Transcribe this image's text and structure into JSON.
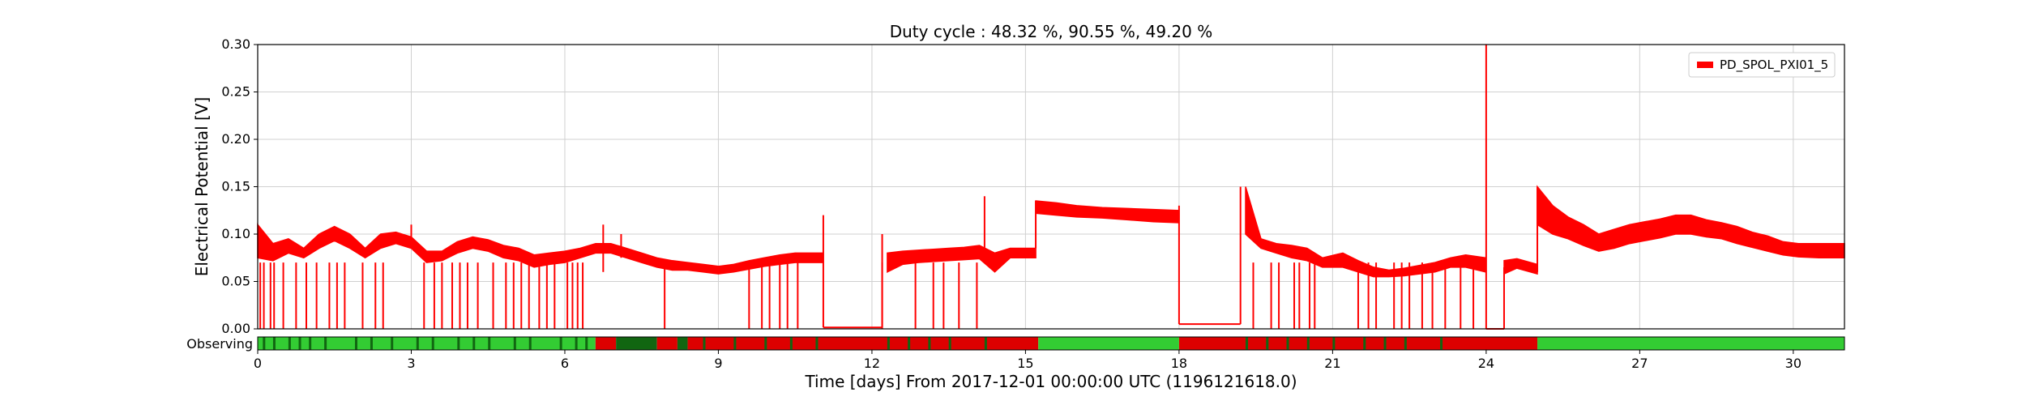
{
  "chart_data": {
    "type": "line",
    "title": "Duty cycle : 48.32 %, 90.55 %, 49.20 %",
    "xlabel": "Time [days] From 2017-12-01 00:00:00 UTC (1196121618.0)",
    "ylabel": "Electrical Potential [V]",
    "xlim": [
      0,
      31
    ],
    "ylim": [
      0,
      0.3
    ],
    "xticks": [
      0,
      3,
      6,
      9,
      12,
      15,
      18,
      21,
      24,
      27,
      30
    ],
    "xtick_labels": [
      "0",
      "3",
      "6",
      "9",
      "12",
      "15",
      "18",
      "21",
      "24",
      "27",
      "30"
    ],
    "yticks": [
      0,
      0.05,
      0.1,
      0.15,
      0.2,
      0.25,
      0.3
    ],
    "ytick_labels": [
      "0.00",
      "0.05",
      "0.10",
      "0.15",
      "0.20",
      "0.25",
      "0.30"
    ],
    "grid": true,
    "legend_position": "top-right",
    "series": [
      {
        "name": "PD_SPOL_PXI01_5",
        "color": "#ff0000",
        "band": [
          [
            0.0,
            0.075,
            0.11
          ],
          [
            0.3,
            0.072,
            0.09
          ],
          [
            0.6,
            0.08,
            0.095
          ],
          [
            0.9,
            0.075,
            0.085
          ],
          [
            1.2,
            0.085,
            0.1
          ],
          [
            1.5,
            0.093,
            0.108
          ],
          [
            1.8,
            0.085,
            0.1
          ],
          [
            2.1,
            0.075,
            0.085
          ],
          [
            2.4,
            0.085,
            0.1
          ],
          [
            2.7,
            0.09,
            0.102
          ],
          [
            3.0,
            0.085,
            0.097
          ],
          [
            3.3,
            0.07,
            0.082
          ],
          [
            3.6,
            0.072,
            0.082
          ],
          [
            3.9,
            0.08,
            0.092
          ],
          [
            4.2,
            0.085,
            0.097
          ],
          [
            4.5,
            0.082,
            0.094
          ],
          [
            4.8,
            0.075,
            0.088
          ],
          [
            5.1,
            0.072,
            0.085
          ],
          [
            5.4,
            0.065,
            0.078
          ],
          [
            5.7,
            0.068,
            0.08
          ],
          [
            6.0,
            0.07,
            0.082
          ],
          [
            6.3,
            0.075,
            0.085
          ],
          [
            6.6,
            0.08,
            0.09
          ],
          [
            6.9,
            0.08,
            0.09
          ],
          [
            7.2,
            0.075,
            0.085
          ],
          [
            7.5,
            0.07,
            0.08
          ],
          [
            7.8,
            0.065,
            0.075
          ],
          [
            8.1,
            0.062,
            0.072
          ],
          [
            8.4,
            0.062,
            0.07
          ],
          [
            8.7,
            0.06,
            0.068
          ],
          [
            9.0,
            0.058,
            0.066
          ],
          [
            9.3,
            0.06,
            0.068
          ],
          [
            9.6,
            0.063,
            0.072
          ],
          [
            9.9,
            0.066,
            0.075
          ],
          [
            10.2,
            0.068,
            0.078
          ],
          [
            10.5,
            0.07,
            0.08
          ],
          [
            10.8,
            0.07,
            0.08
          ],
          [
            11.05,
            0.07,
            0.08
          ]
        ],
        "band2": [
          [
            12.3,
            0.06,
            0.08
          ],
          [
            12.6,
            0.068,
            0.082
          ],
          [
            12.9,
            0.07,
            0.083
          ],
          [
            13.2,
            0.071,
            0.084
          ],
          [
            13.5,
            0.072,
            0.085
          ],
          [
            13.8,
            0.073,
            0.086
          ],
          [
            14.1,
            0.074,
            0.088
          ],
          [
            14.4,
            0.06,
            0.08
          ],
          [
            14.7,
            0.075,
            0.085
          ],
          [
            15.2,
            0.075,
            0.085
          ]
        ],
        "band3": [
          [
            15.2,
            0.122,
            0.135
          ],
          [
            15.6,
            0.12,
            0.133
          ],
          [
            16.0,
            0.118,
            0.13
          ],
          [
            16.5,
            0.117,
            0.128
          ],
          [
            17.0,
            0.115,
            0.127
          ],
          [
            17.5,
            0.113,
            0.126
          ],
          [
            18.0,
            0.112,
            0.125
          ]
        ],
        "band4": [
          [
            19.3,
            0.1,
            0.15
          ],
          [
            19.6,
            0.085,
            0.095
          ],
          [
            19.9,
            0.08,
            0.09
          ],
          [
            20.2,
            0.075,
            0.088
          ],
          [
            20.5,
            0.072,
            0.085
          ],
          [
            20.8,
            0.065,
            0.075
          ],
          [
            21.2,
            0.065,
            0.08
          ],
          [
            21.5,
            0.06,
            0.072
          ],
          [
            21.8,
            0.055,
            0.065
          ],
          [
            22.1,
            0.055,
            0.062
          ],
          [
            22.4,
            0.056,
            0.064
          ],
          [
            22.7,
            0.058,
            0.067
          ],
          [
            23.0,
            0.06,
            0.07
          ],
          [
            23.3,
            0.065,
            0.075
          ],
          [
            23.6,
            0.065,
            0.078
          ],
          [
            23.99,
            0.06,
            0.075
          ]
        ],
        "band5": [
          [
            25.0,
            0.11,
            0.15
          ],
          [
            25.3,
            0.1,
            0.13
          ],
          [
            25.6,
            0.095,
            0.118
          ],
          [
            25.9,
            0.088,
            0.11
          ],
          [
            26.2,
            0.082,
            0.1
          ],
          [
            26.5,
            0.085,
            0.105
          ],
          [
            26.8,
            0.09,
            0.11
          ],
          [
            27.1,
            0.093,
            0.113
          ],
          [
            27.4,
            0.096,
            0.116
          ],
          [
            27.7,
            0.1,
            0.12
          ],
          [
            28.0,
            0.1,
            0.12
          ],
          [
            28.3,
            0.097,
            0.115
          ],
          [
            28.6,
            0.095,
            0.112
          ],
          [
            28.9,
            0.09,
            0.108
          ],
          [
            29.2,
            0.086,
            0.102
          ],
          [
            29.5,
            0.082,
            0.098
          ],
          [
            29.8,
            0.078,
            0.092
          ],
          [
            30.1,
            0.076,
            0.09
          ],
          [
            30.5,
            0.075,
            0.09
          ],
          [
            31.0,
            0.075,
            0.09
          ]
        ],
        "dropouts": [
          0.05,
          0.12,
          0.25,
          0.32,
          0.5,
          0.75,
          0.95,
          1.15,
          1.4,
          1.55,
          1.7,
          2.05,
          2.3,
          2.45,
          3.25,
          3.45,
          3.6,
          3.8,
          3.95,
          4.1,
          4.3,
          4.6,
          4.85,
          5.0,
          5.15,
          5.3,
          5.5,
          5.65,
          5.8,
          6.05,
          6.15,
          6.25,
          6.35,
          7.95,
          9.6,
          9.85,
          10.0,
          10.2,
          10.35,
          10.55,
          12.2,
          12.85,
          13.2,
          13.4,
          13.7,
          14.05,
          19.45,
          19.8,
          19.95,
          20.25,
          20.35,
          20.55,
          20.65,
          21.5,
          21.7,
          21.85,
          22.2,
          22.35,
          22.5,
          22.75,
          22.95,
          23.2,
          23.5,
          23.75
        ]
      }
    ],
    "annotations": [
      {
        "label": "Observing",
        "row": "state-bar"
      }
    ],
    "state_bar": {
      "label": "Observing",
      "colors": {
        "observing": "#33cc33",
        "not_observing": "#dd0000",
        "dark": "#116611"
      },
      "segments": [
        [
          0,
          6.6,
          "observing"
        ],
        [
          6.6,
          7.0,
          "not_observing"
        ],
        [
          7.0,
          7.8,
          "dark"
        ],
        [
          7.8,
          8.2,
          "not_observing"
        ],
        [
          8.2,
          8.4,
          "dark"
        ],
        [
          8.4,
          15.25,
          "not_observing"
        ],
        [
          15.25,
          18.0,
          "observing"
        ],
        [
          18.0,
          25.0,
          "not_observing"
        ],
        [
          25.0,
          31.0,
          "observing"
        ]
      ],
      "dark_marks": [
        0.1,
        0.3,
        0.6,
        0.8,
        1.0,
        1.3,
        1.9,
        2.2,
        2.6,
        3.1,
        3.4,
        3.9,
        4.2,
        4.5,
        5.0,
        5.3,
        5.9,
        6.2,
        6.4,
        8.7,
        9.3,
        9.9,
        10.4,
        10.9,
        12.3,
        12.7,
        13.1,
        13.5,
        14.2,
        19.3,
        19.7,
        20.1,
        20.5,
        21.0,
        21.6,
        22.0,
        22.4,
        23.1
      ]
    }
  }
}
